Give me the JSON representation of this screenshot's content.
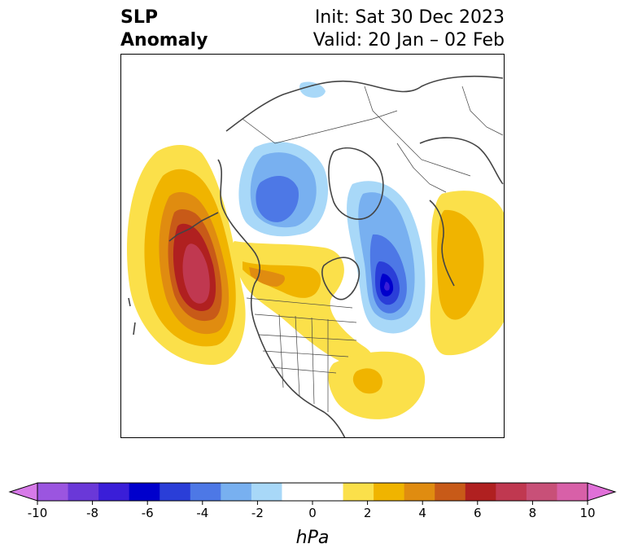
{
  "title": {
    "left_line1": "SLP",
    "left_line2": "Anomaly",
    "right_line1": "Init: Sat 30 Dec 2023",
    "right_line2": "Valid: 20 Jan – 02 Feb"
  },
  "colorbar": {
    "label": "hPa",
    "ticks": [
      "-10",
      "-8",
      "-6",
      "-4",
      "-2",
      "0",
      "2",
      "4",
      "6",
      "8",
      "10"
    ],
    "colors": [
      "#d77ae8",
      "#9b55e0",
      "#6a38d8",
      "#3a1ed8",
      "#0000cc",
      "#2a3ed8",
      "#4d78e6",
      "#78b0f0",
      "#a8d8f8",
      "#ffffff",
      "#ffffff",
      "#fbe04a",
      "#f0b400",
      "#e08c10",
      "#c85a18",
      "#b02020",
      "#c03850",
      "#c85078",
      "#d860a8",
      "#e070d8"
    ]
  },
  "map": {
    "region": "Northern Hemisphere / North America",
    "anomaly_colors": {
      "pos_light": "#fbe04a",
      "pos_mid": "#f0b400",
      "pos_orange": "#e08c10",
      "pos_dark": "#c85a18",
      "pos_red": "#b02020",
      "pos_max": "#c03850",
      "neg_light": "#a8d8f8",
      "neg_mid": "#78b0f0",
      "neg_blue": "#4d78e6",
      "neg_dark": "#2a3ed8",
      "neg_max": "#0000cc"
    }
  }
}
